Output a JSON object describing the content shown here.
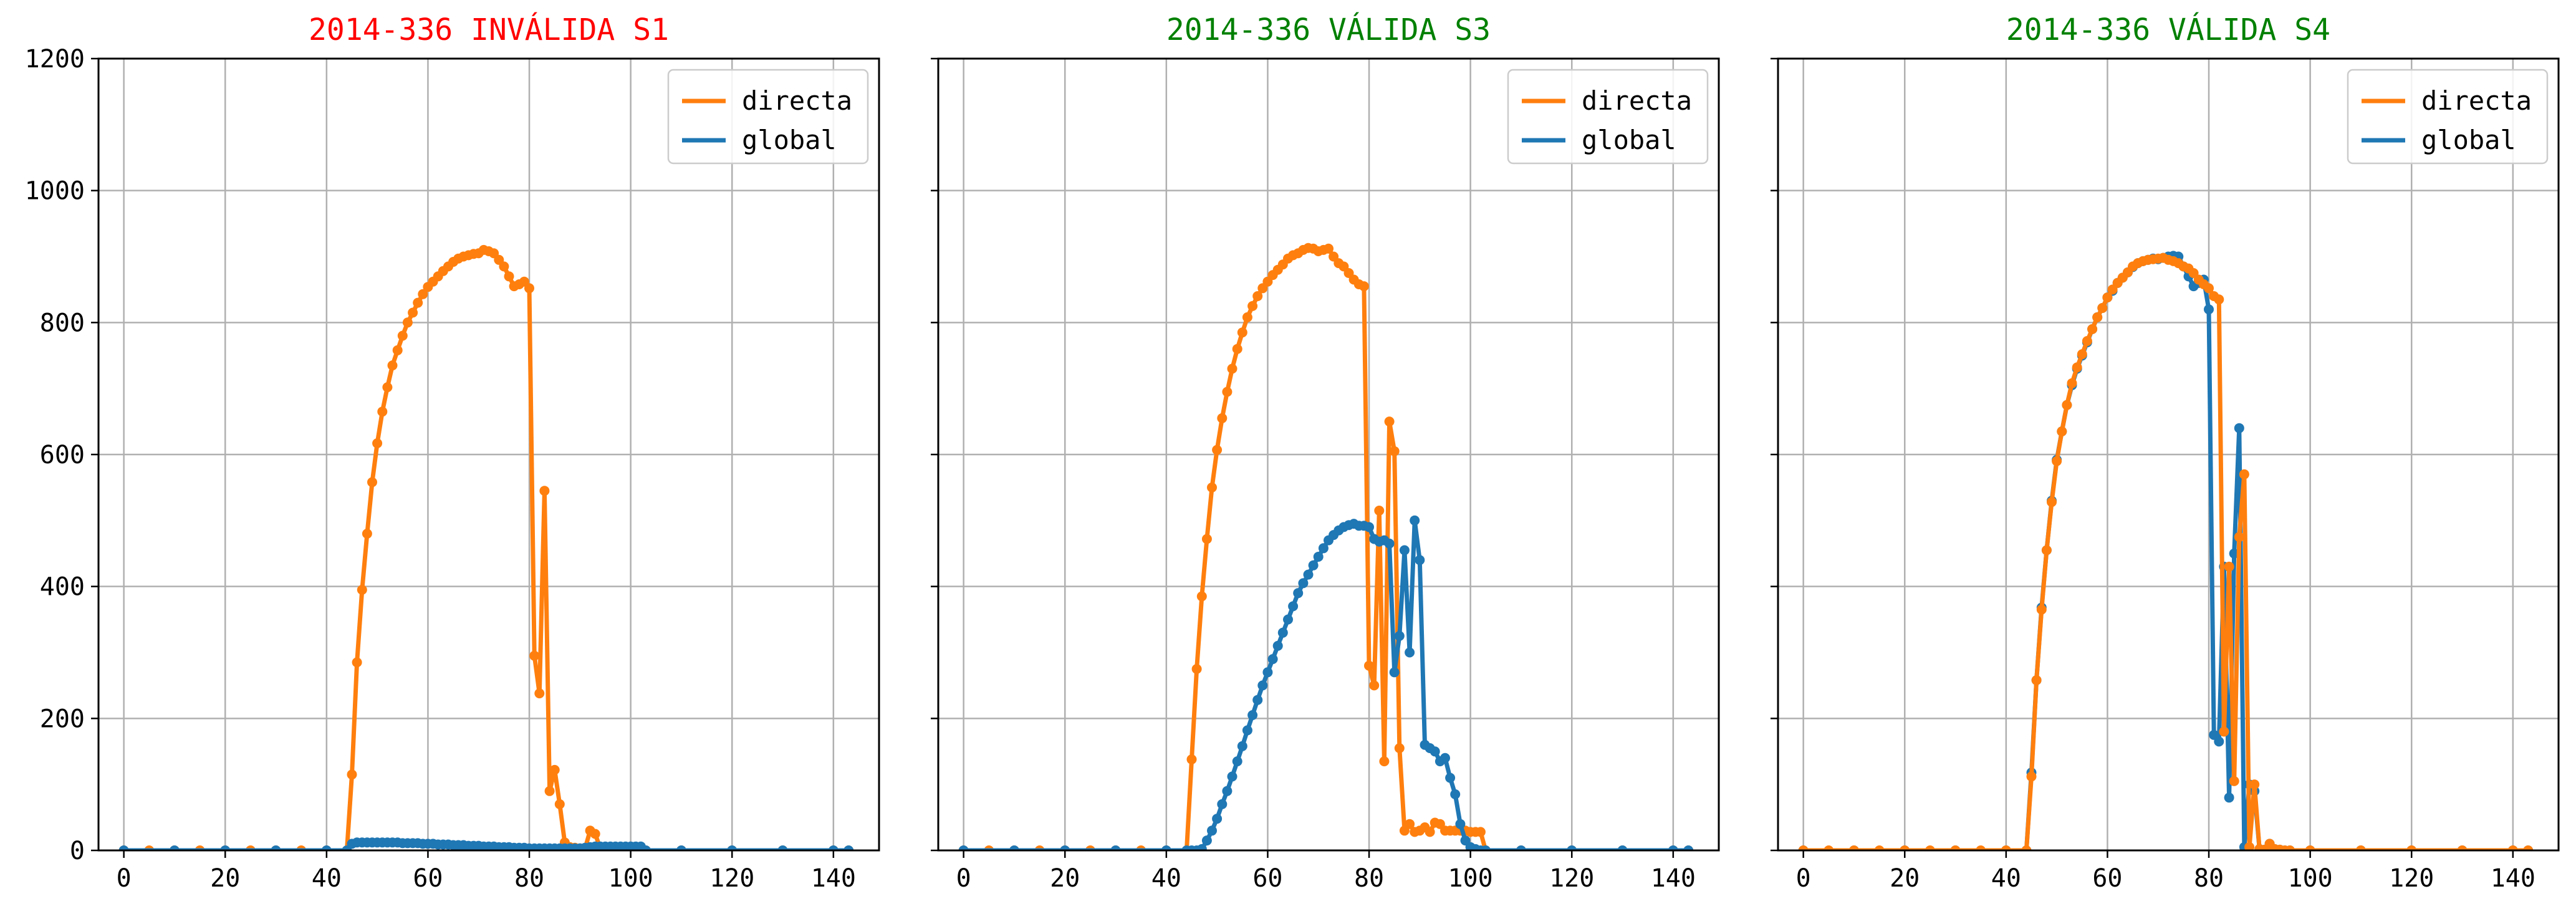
{
  "chart_data": [
    {
      "type": "line",
      "title": "2014-336 INVÁLIDA S1",
      "title_color": "#ff0000",
      "xlim": [
        -5,
        149
      ],
      "ylim": [
        0,
        1200
      ],
      "xticks": [
        "0",
        "20",
        "40",
        "60",
        "80",
        "100",
        "120",
        "140"
      ],
      "yticks": [
        "0",
        "200",
        "400",
        "600",
        "800",
        "1000",
        "1200"
      ],
      "grid": true,
      "legend_position": "upper right",
      "series": [
        {
          "name": "directa",
          "color": "#ff7f0e",
          "x": [
            0,
            5,
            10,
            15,
            20,
            25,
            30,
            35,
            40,
            44,
            45,
            46,
            47,
            48,
            49,
            50,
            51,
            52,
            53,
            54,
            55,
            56,
            57,
            58,
            59,
            60,
            61,
            62,
            63,
            64,
            65,
            66,
            67,
            68,
            69,
            70,
            71,
            72,
            73,
            74,
            75,
            76,
            77,
            78,
            79,
            80,
            81,
            82,
            83,
            84,
            85,
            86,
            87,
            88,
            89,
            90,
            91,
            92,
            93,
            94,
            95,
            96,
            97,
            98,
            99,
            100,
            101,
            102,
            103,
            110,
            120,
            130,
            140,
            143
          ],
          "y": [
            0,
            0,
            0,
            0,
            0,
            0,
            0,
            0,
            0,
            0,
            115,
            285,
            395,
            480,
            558,
            617,
            665,
            702,
            735,
            758,
            780,
            800,
            815,
            830,
            843,
            854,
            862,
            870,
            878,
            885,
            892,
            897,
            900,
            902,
            904,
            905,
            910,
            908,
            905,
            895,
            885,
            870,
            855,
            858,
            862,
            852,
            295,
            238,
            545,
            90,
            122,
            70,
            12,
            5,
            4,
            3,
            3,
            30,
            25,
            3,
            2,
            3,
            2,
            3,
            2,
            3,
            2,
            2,
            0,
            0,
            0,
            0,
            0,
            0
          ]
        },
        {
          "name": "global",
          "color": "#1f77b4",
          "x": [
            0,
            10,
            20,
            30,
            40,
            44,
            45,
            46,
            47,
            48,
            49,
            50,
            51,
            52,
            53,
            54,
            55,
            56,
            57,
            58,
            59,
            60,
            61,
            62,
            63,
            64,
            65,
            66,
            67,
            68,
            69,
            70,
            71,
            72,
            73,
            74,
            75,
            76,
            77,
            78,
            79,
            80,
            81,
            82,
            83,
            84,
            85,
            86,
            87,
            88,
            89,
            90,
            91,
            92,
            93,
            94,
            95,
            96,
            97,
            98,
            99,
            100,
            101,
            102,
            103,
            110,
            120,
            130,
            140,
            143
          ],
          "y": [
            0,
            0,
            0,
            0,
            0,
            0,
            10,
            12,
            12,
            12,
            12,
            12,
            12,
            12,
            12,
            12,
            11,
            11,
            11,
            11,
            10,
            10,
            10,
            9,
            9,
            9,
            8,
            8,
            8,
            7,
            7,
            7,
            6,
            6,
            6,
            5,
            5,
            5,
            4,
            4,
            4,
            3,
            3,
            3,
            3,
            3,
            3,
            3,
            3,
            3,
            3,
            3,
            4,
            5,
            6,
            6,
            6,
            6,
            6,
            6,
            6,
            6,
            6,
            6,
            0,
            0,
            0,
            0,
            0,
            0
          ]
        }
      ]
    },
    {
      "type": "line",
      "title": "2014-336 VÁLIDA S3",
      "title_color": "#008000",
      "xlim": [
        -5,
        149
      ],
      "ylim": [
        0,
        1200
      ],
      "xticks": [
        "0",
        "20",
        "40",
        "60",
        "80",
        "100",
        "120",
        "140"
      ],
      "yticks": [],
      "grid": true,
      "legend_position": "upper right",
      "series": [
        {
          "name": "directa",
          "color": "#ff7f0e",
          "x": [
            0,
            5,
            10,
            15,
            20,
            25,
            30,
            35,
            40,
            44,
            45,
            46,
            47,
            48,
            49,
            50,
            51,
            52,
            53,
            54,
            55,
            56,
            57,
            58,
            59,
            60,
            61,
            62,
            63,
            64,
            65,
            66,
            67,
            68,
            69,
            70,
            71,
            72,
            73,
            74,
            75,
            76,
            77,
            78,
            79,
            80,
            81,
            82,
            83,
            84,
            85,
            86,
            87,
            88,
            89,
            90,
            91,
            92,
            93,
            94,
            95,
            96,
            97,
            98,
            99,
            100,
            101,
            102,
            103,
            110,
            120,
            130,
            140,
            143
          ],
          "y": [
            0,
            0,
            0,
            0,
            0,
            0,
            0,
            0,
            0,
            0,
            138,
            275,
            385,
            472,
            550,
            607,
            655,
            695,
            730,
            760,
            785,
            808,
            825,
            840,
            852,
            862,
            872,
            880,
            888,
            897,
            902,
            905,
            910,
            913,
            912,
            908,
            910,
            912,
            900,
            890,
            885,
            875,
            865,
            858,
            855,
            280,
            250,
            515,
            135,
            650,
            605,
            155,
            30,
            40,
            28,
            30,
            35,
            28,
            42,
            40,
            30,
            30,
            30,
            30,
            30,
            28,
            28,
            28,
            0,
            0,
            0,
            0,
            0,
            0
          ]
        },
        {
          "name": "global",
          "color": "#1f77b4",
          "x": [
            0,
            10,
            20,
            30,
            40,
            44,
            45,
            46,
            47,
            48,
            49,
            50,
            51,
            52,
            53,
            54,
            55,
            56,
            57,
            58,
            59,
            60,
            61,
            62,
            63,
            64,
            65,
            66,
            67,
            68,
            69,
            70,
            71,
            72,
            73,
            74,
            75,
            76,
            77,
            78,
            79,
            80,
            81,
            82,
            83,
            84,
            85,
            86,
            87,
            88,
            89,
            90,
            91,
            92,
            93,
            94,
            95,
            96,
            97,
            98,
            99,
            100,
            101,
            102,
            103,
            110,
            120,
            130,
            140,
            143
          ],
          "y": [
            0,
            0,
            0,
            0,
            0,
            0,
            0,
            0,
            2,
            15,
            30,
            48,
            70,
            90,
            112,
            135,
            158,
            182,
            205,
            228,
            250,
            270,
            290,
            310,
            330,
            350,
            370,
            390,
            405,
            418,
            432,
            445,
            458,
            470,
            478,
            485,
            490,
            493,
            495,
            492,
            492,
            490,
            472,
            468,
            470,
            465,
            270,
            325,
            455,
            300,
            500,
            440,
            160,
            155,
            150,
            135,
            140,
            110,
            85,
            40,
            15,
            5,
            2,
            0,
            0,
            0,
            0,
            0,
            0,
            0
          ]
        }
      ]
    },
    {
      "type": "line",
      "title": "2014-336 VÁLIDA S4",
      "title_color": "#008000",
      "xlim": [
        -5,
        149
      ],
      "ylim": [
        0,
        1200
      ],
      "xticks": [
        "0",
        "20",
        "40",
        "60",
        "80",
        "100",
        "120",
        "140"
      ],
      "yticks": [],
      "grid": true,
      "legend_position": "upper right",
      "series": [
        {
          "name": "global",
          "color": "#1f77b4",
          "x": [
            0,
            10,
            20,
            30,
            40,
            44,
            45,
            46,
            47,
            48,
            49,
            50,
            51,
            52,
            53,
            54,
            55,
            56,
            57,
            58,
            59,
            60,
            61,
            62,
            63,
            64,
            65,
            66,
            67,
            68,
            69,
            70,
            71,
            72,
            73,
            74,
            75,
            76,
            77,
            78,
            79,
            80,
            81,
            82,
            83,
            84,
            85,
            86,
            87,
            88,
            89,
            90,
            91,
            92,
            93,
            94,
            95,
            96,
            100,
            110,
            120,
            130,
            140,
            143
          ],
          "y": [
            0,
            0,
            0,
            0,
            0,
            0,
            118,
            258,
            368,
            455,
            530,
            592,
            635,
            675,
            705,
            730,
            750,
            770,
            790,
            808,
            822,
            838,
            848,
            860,
            868,
            876,
            884,
            890,
            893,
            895,
            897,
            896,
            898,
            900,
            901,
            900,
            885,
            870,
            855,
            860,
            865,
            820,
            175,
            165,
            430,
            80,
            450,
            640,
            5,
            100,
            90,
            2,
            1,
            10,
            2,
            1,
            0,
            0,
            0,
            0,
            0,
            0,
            0,
            0
          ]
        },
        {
          "name": "directa",
          "color": "#ff7f0e",
          "x": [
            0,
            5,
            10,
            15,
            20,
            25,
            30,
            35,
            40,
            44,
            45,
            46,
            47,
            48,
            49,
            50,
            51,
            52,
            53,
            54,
            55,
            56,
            57,
            58,
            59,
            60,
            61,
            62,
            63,
            64,
            65,
            66,
            67,
            68,
            69,
            70,
            71,
            72,
            73,
            74,
            75,
            76,
            77,
            78,
            79,
            80,
            81,
            82,
            83,
            84,
            85,
            86,
            87,
            88,
            89,
            90,
            91,
            92,
            93,
            94,
            95,
            96,
            100,
            110,
            120,
            130,
            140,
            143
          ],
          "y": [
            0,
            0,
            0,
            0,
            0,
            0,
            0,
            0,
            0,
            0,
            112,
            258,
            365,
            455,
            528,
            590,
            635,
            675,
            708,
            732,
            752,
            772,
            790,
            808,
            822,
            838,
            850,
            860,
            868,
            876,
            885,
            890,
            893,
            895,
            896,
            897,
            898,
            895,
            893,
            890,
            885,
            882,
            875,
            865,
            858,
            852,
            840,
            835,
            180,
            430,
            105,
            475,
            570,
            5,
            100,
            2,
            1,
            10,
            2,
            1,
            0,
            0,
            0,
            0,
            0,
            0,
            0,
            0
          ]
        }
      ]
    }
  ]
}
